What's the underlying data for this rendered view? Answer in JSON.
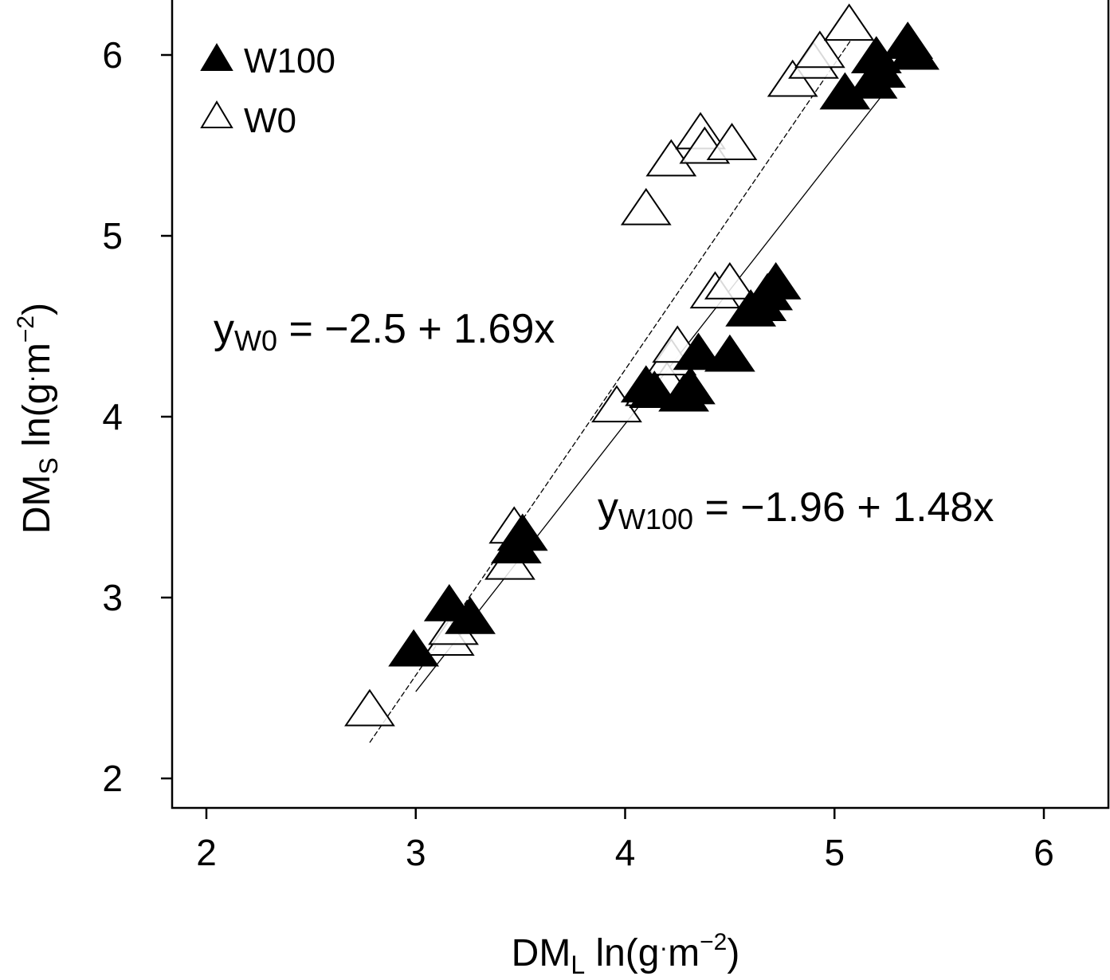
{
  "chart_data": {
    "type": "scatter",
    "xlabel": {
      "main": "DM",
      "sub": "L",
      "unit_pre": " ln(g",
      "unit_dot": "·",
      "unit_m": "m",
      "unit_sup": "−2",
      "unit_post": ")"
    },
    "ylabel": {
      "main": "DM",
      "sub": "S",
      "unit_pre": " ln(g",
      "unit_dot": "·",
      "unit_m": "m",
      "unit_sup": "−2",
      "unit_post": ")"
    },
    "xlim": [
      1.83,
      6.28
    ],
    "ylim": [
      1.95,
      6.28
    ],
    "xticks": [
      2,
      3,
      4,
      5,
      6
    ],
    "yticks": [
      2,
      3,
      4,
      5,
      6
    ],
    "tick_labels_x": [
      "2",
      "3",
      "4",
      "5",
      "6"
    ],
    "tick_labels_y": [
      "2",
      "3",
      "4",
      "5",
      "6"
    ],
    "legend": {
      "placement": "top-left",
      "entries": [
        "W100",
        "W0"
      ]
    },
    "grid": false,
    "series": [
      {
        "name": "W100",
        "marker": "filled-triangle",
        "color": "#000000",
        "points": [
          [
            2.99,
            2.72
          ],
          [
            3.16,
            2.97
          ],
          [
            3.26,
            2.9
          ],
          [
            3.48,
            3.29
          ],
          [
            3.51,
            3.36
          ],
          [
            4.1,
            4.18
          ],
          [
            4.14,
            4.15
          ],
          [
            4.28,
            4.13
          ],
          [
            4.31,
            4.17
          ],
          [
            4.35,
            4.36
          ],
          [
            4.5,
            4.35
          ],
          [
            4.6,
            4.6
          ],
          [
            4.65,
            4.63
          ],
          [
            4.68,
            4.69
          ],
          [
            4.72,
            4.75
          ],
          [
            5.05,
            5.8
          ],
          [
            5.18,
            5.86
          ],
          [
            5.2,
            6.0
          ],
          [
            5.22,
            5.92
          ],
          [
            5.35,
            6.08
          ],
          [
            5.38,
            6.02
          ]
        ],
        "fit": {
          "intercept": -1.96,
          "slope": 1.48,
          "x_range": [
            3.0,
            5.25
          ],
          "style": "solid"
        },
        "equation": {
          "var": "y",
          "sub": "W100",
          "rhs": " = −1.96 +  1.48x"
        }
      },
      {
        "name": "W0",
        "marker": "open-triangle",
        "color": "#000000",
        "points": [
          [
            2.78,
            2.39
          ],
          [
            3.16,
            2.78
          ],
          [
            3.18,
            2.84
          ],
          [
            3.45,
            3.2
          ],
          [
            3.47,
            3.4
          ],
          [
            3.96,
            4.07
          ],
          [
            4.1,
            5.16
          ],
          [
            4.12,
            4.16
          ],
          [
            4.2,
            4.2
          ],
          [
            4.22,
            4.33
          ],
          [
            4.25,
            4.4
          ],
          [
            4.22,
            5.43
          ],
          [
            4.36,
            5.58
          ],
          [
            4.38,
            5.5
          ],
          [
            4.43,
            4.7
          ],
          [
            4.5,
            4.75
          ],
          [
            4.51,
            5.52
          ],
          [
            4.8,
            5.87
          ],
          [
            4.9,
            5.97
          ],
          [
            4.93,
            6.03
          ],
          [
            5.07,
            6.18
          ]
        ],
        "fit": {
          "intercept": -2.5,
          "slope": 1.69,
          "x_range": [
            2.78,
            5.08
          ],
          "style": "dashed"
        },
        "equation": {
          "var": "y",
          "sub": "W0",
          "rhs": " = −2.5 +  1.69x"
        }
      }
    ]
  }
}
